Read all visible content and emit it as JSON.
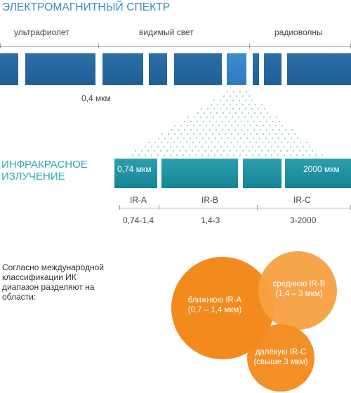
{
  "title": "ЭЛЕКТРОМАГНИТНЫЙ СПЕКТР",
  "bands": {
    "uv": "ультрафиолет",
    "visible": "видимый свет",
    "radio": "радиоволны"
  },
  "wavelength_label": "0,4 мкм",
  "ir_title_line1": "ИНФРАКРАСНОЕ",
  "ir_title_line2": "ИЗЛУЧЕНИЕ",
  "ir_bar": {
    "left_value": "0,74 мкм",
    "right_value": "2000 мкм"
  },
  "ir_ranges": [
    {
      "name": "IR-A",
      "range": "0,74-1,4"
    },
    {
      "name": "IR-B",
      "range": "1,4-3"
    },
    {
      "name": "IR-C",
      "range": "3-2000"
    }
  ],
  "description": "Согласно международной классификации ИК диапазон разделяют на области:",
  "circles": {
    "near_line1": "ближнюю IR-A",
    "near_line2": "(0,7 – 1,4 мкм)",
    "mid_line1": "среднюю IR-B",
    "mid_line2": "(1,4 – 3 мкм)",
    "far_line1": "далёкую IR-C",
    "far_line2": "(свыше 3 мкм)"
  },
  "colors": {
    "spectrum_blue": "#2c6ea6",
    "ir_teal": "#1f95a5",
    "circle_orange": "#f28a1e",
    "circle_orange_light": "#f6a040"
  }
}
